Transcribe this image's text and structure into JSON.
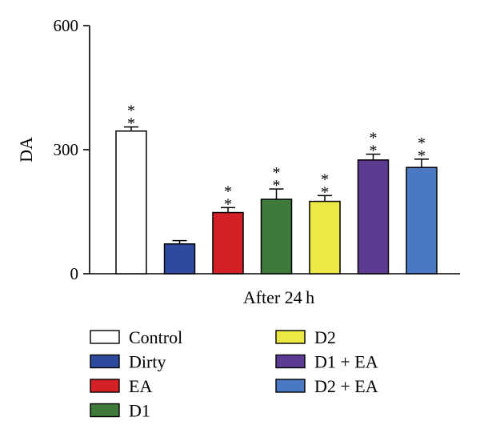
{
  "chart_data": {
    "type": "bar",
    "title": "",
    "xlabel": "After 24 h",
    "ylabel": "DA",
    "ylim": [
      0,
      600
    ],
    "yticks": [
      "0",
      "300",
      "600"
    ],
    "grid": false,
    "legend_position": "bottom",
    "categories": [
      "Control",
      "Dirty",
      "EA",
      "D1",
      "D2",
      "D1 + EA",
      "D2 + EA"
    ],
    "values": [
      345,
      72,
      148,
      180,
      175,
      275,
      257
    ],
    "errors": [
      10,
      8,
      12,
      25,
      14,
      14,
      20
    ],
    "significance": [
      "**",
      "",
      "**",
      "**",
      "**",
      "**",
      "**"
    ],
    "colors": [
      "#ffffff",
      "#2e4a9e",
      "#d42027",
      "#3e7b3b",
      "#ece845",
      "#5c3c93",
      "#4a78c2"
    ]
  }
}
